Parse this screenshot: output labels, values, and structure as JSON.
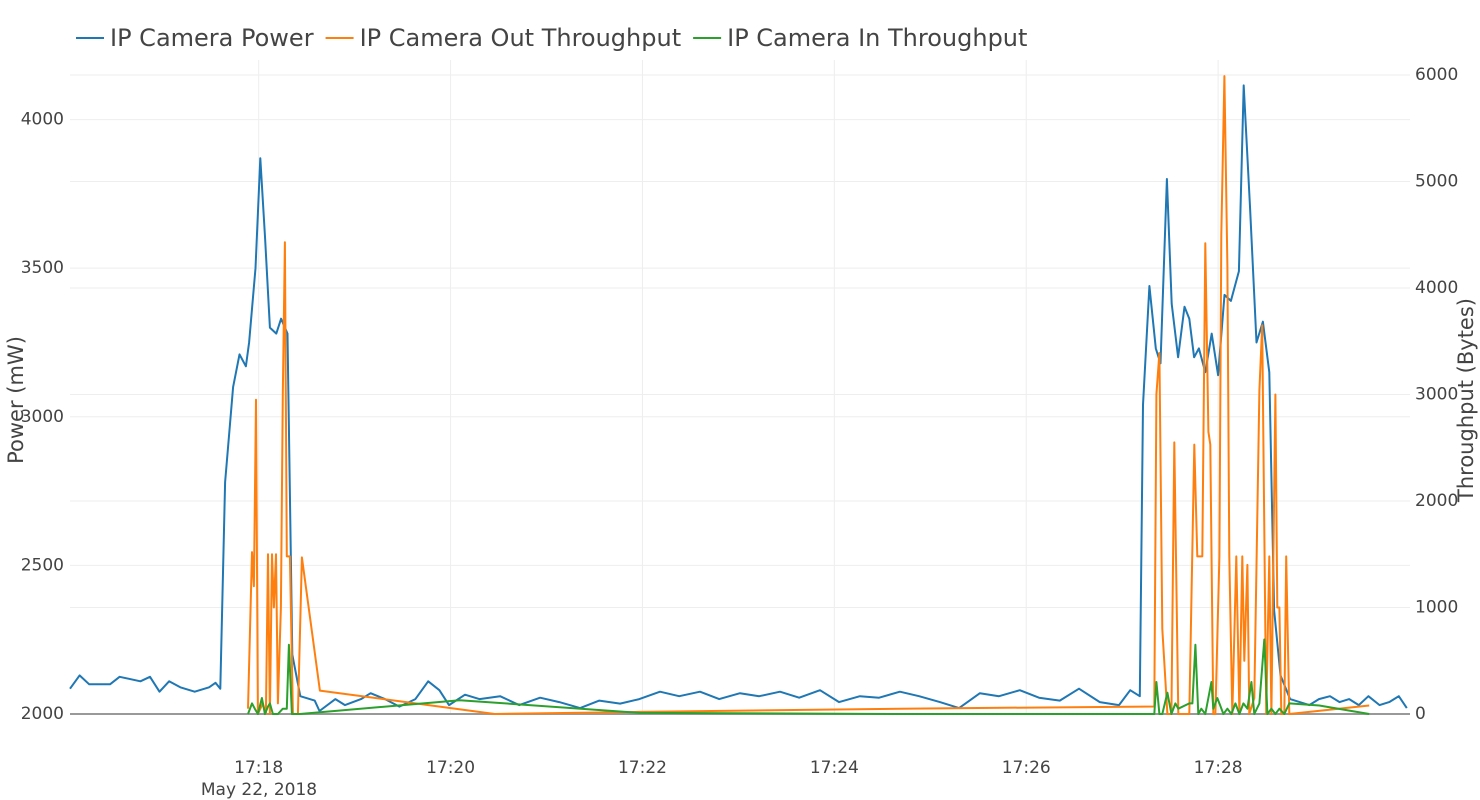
{
  "chart_data": {
    "type": "line",
    "x_date_label": "May 22, 2018",
    "ylabel": "Power (mW)",
    "y2label": "Throughput (Bytes)",
    "xlim": [
      "17:16:02",
      "17:30:00"
    ],
    "xticks": [
      {
        "value": "17:18:00",
        "label": "17:18"
      },
      {
        "value": "17:20:00",
        "label": "17:20"
      },
      {
        "value": "17:22:00",
        "label": "17:22"
      },
      {
        "value": "17:24:00",
        "label": "17:24"
      },
      {
        "value": "17:26:00",
        "label": "17:26"
      },
      {
        "value": "17:28:00",
        "label": "17:28"
      }
    ],
    "ylim": [
      2000,
      4150
    ],
    "yticks": [
      2000,
      2500,
      3000,
      3500,
      4000
    ],
    "y2lim": [
      0,
      6000
    ],
    "y2ticks": [
      0,
      1000,
      2000,
      3000,
      4000,
      5000,
      6000
    ],
    "grid": true,
    "legend": "top-left",
    "series": [
      {
        "name": "IP Camera Power",
        "color": "#1f77b4",
        "axis": "y",
        "x": [
          "17:16:02",
          "17:16:08",
          "17:16:14",
          "17:16:27",
          "17:16:33",
          "17:16:46",
          "17:16:52",
          "17:16:58",
          "17:17:04",
          "17:17:11",
          "17:17:20",
          "17:17:29",
          "17:17:33",
          "17:17:36",
          "17:17:39",
          "17:17:44",
          "17:17:48",
          "17:17:52",
          "17:17:54",
          "17:17:58",
          "17:18:01",
          "17:18:04",
          "17:18:07",
          "17:18:11",
          "17:18:14",
          "17:18:18",
          "17:18:21",
          "17:18:26",
          "17:18:35",
          "17:18:38",
          "17:18:48",
          "17:18:54",
          "17:19:04",
          "17:19:10",
          "17:19:19",
          "17:19:28",
          "17:19:38",
          "17:19:46",
          "17:19:53",
          "17:19:59",
          "17:20:09",
          "17:20:18",
          "17:20:31",
          "17:20:43",
          "17:20:56",
          "17:21:08",
          "17:21:21",
          "17:21:33",
          "17:21:46",
          "17:21:58",
          "17:22:11",
          "17:22:23",
          "17:22:36",
          "17:22:48",
          "17:23:01",
          "17:23:13",
          "17:23:26",
          "17:23:38",
          "17:23:51",
          "17:24:03",
          "17:24:16",
          "17:24:28",
          "17:24:41",
          "17:24:53",
          "17:25:06",
          "17:25:18",
          "17:25:31",
          "17:25:43",
          "17:25:56",
          "17:26:08",
          "17:26:21",
          "17:26:33",
          "17:26:46",
          "17:26:58",
          "17:27:05",
          "17:27:11",
          "17:27:13",
          "17:27:17",
          "17:27:21",
          "17:27:24",
          "17:27:28",
          "17:27:31",
          "17:27:35",
          "17:27:39",
          "17:27:42",
          "17:27:45",
          "17:27:48",
          "17:27:52",
          "17:27:56",
          "17:28:00",
          "17:28:04",
          "17:28:08",
          "17:28:13",
          "17:28:16",
          "17:28:20",
          "17:28:24",
          "17:28:28",
          "17:28:32",
          "17:28:35",
          "17:28:39",
          "17:28:45",
          "17:28:51",
          "17:28:57",
          "17:29:03",
          "17:29:10",
          "17:29:16",
          "17:29:22",
          "17:29:28",
          "17:29:34",
          "17:29:41",
          "17:29:47",
          "17:29:53",
          "17:29:58"
        ],
        "values": [
          2085,
          2130,
          2100,
          2100,
          2125,
          2110,
          2125,
          2075,
          2110,
          2090,
          2075,
          2090,
          2105,
          2085,
          2780,
          3100,
          3210,
          3170,
          3250,
          3500,
          3870,
          3600,
          3300,
          3280,
          3330,
          3280,
          2200,
          2060,
          2045,
          2010,
          2050,
          2030,
          2050,
          2070,
          2050,
          2025,
          2050,
          2110,
          2080,
          2030,
          2065,
          2050,
          2060,
          2030,
          2055,
          2040,
          2020,
          2045,
          2035,
          2050,
          2075,
          2060,
          2075,
          2050,
          2070,
          2060,
          2075,
          2055,
          2080,
          2040,
          2060,
          2055,
          2075,
          2060,
          2040,
          2020,
          2070,
          2060,
          2080,
          2055,
          2045,
          2085,
          2040,
          2030,
          2080,
          2060,
          3040,
          3440,
          3230,
          3180,
          3800,
          3380,
          3200,
          3370,
          3330,
          3200,
          3230,
          3150,
          3280,
          3140,
          3410,
          3390,
          3490,
          4115,
          3700,
          3250,
          3320,
          3150,
          2350,
          2130,
          2050,
          2040,
          2030,
          2050,
          2060,
          2040,
          2050,
          2030,
          2060,
          2030,
          2040,
          2060,
          2020
        ]
      },
      {
        "name": "IP Camera Out Throughput",
        "color": "#ff7f0e",
        "axis": "y2",
        "x": [
          "17:17:53.3",
          "17:17:55.8",
          "17:17:57",
          "17:17:58.3",
          "17:17:59.5",
          "17:18:02.6",
          "17:18:04.5",
          "17:18:05.8",
          "17:18:07",
          "17:18:08.3",
          "17:18:09.5",
          "17:18:10.8",
          "17:18:12",
          "17:18:13.9",
          "17:18:15.1",
          "17:18:16.4",
          "17:18:17.6",
          "17:18:19.5",
          "17:18:21.4",
          "17:18:24.5",
          "17:18:27",
          "17:18:38.3",
          "17:20:27.6",
          "17:21:58.3",
          "17:24:40.8",
          "17:27:20.1",
          "17:27:21.4",
          "17:27:23.3",
          "17:27:25.1",
          "17:27:28.3",
          "17:27:30.8",
          "17:27:32.6",
          "17:27:35.1",
          "17:27:42",
          "17:27:45.1",
          "17:27:47",
          "17:27:50.1",
          "17:27:52",
          "17:27:53.9",
          "17:27:55.1",
          "17:27:57",
          "17:27:58.3",
          "17:28:00.8",
          "17:28:02",
          "17:28:03.9",
          "17:28:05.8",
          "17:28:07",
          "17:28:08.9",
          "17:28:11.4",
          "17:28:13.3",
          "17:28:15.1",
          "17:28:16.4",
          "17:28:18.3",
          "17:28:19.5",
          "17:28:22.6",
          "17:28:25.8",
          "17:28:27.6",
          "17:28:30.1",
          "17:28:32",
          "17:28:33.3",
          "17:28:35.8",
          "17:28:37",
          "17:28:38.3",
          "17:28:39.5",
          "17:28:41.4",
          "17:28:42.6",
          "17:28:44.5",
          "17:29:34.5"
        ],
        "values": [
          50,
          1520,
          1200,
          2950,
          0,
          100,
          0,
          1500,
          0,
          1500,
          1000,
          1500,
          100,
          1000,
          3000,
          4430,
          1480,
          1480,
          0,
          0,
          1470,
          220,
          0,
          20,
          50,
          70,
          3000,
          3390,
          800,
          0,
          0,
          2550,
          0,
          0,
          2530,
          1480,
          1480,
          4420,
          2650,
          2530,
          0,
          0,
          1480,
          4500,
          5990,
          4200,
          1480,
          0,
          1480,
          0,
          1480,
          500,
          1400,
          0,
          150,
          3040,
          3650,
          0,
          1480,
          0,
          3000,
          1000,
          1000,
          0,
          0,
          1480,
          0,
          80
        ]
      },
      {
        "name": "IP Camera In Throughput",
        "color": "#2ca02c",
        "axis": "y2",
        "x": [
          "17:17:53.3",
          "17:17:55.8",
          "17:17:57.6",
          "17:17:59.5",
          "17:18:02",
          "17:18:03.9",
          "17:18:05.8",
          "17:18:07",
          "17:18:08.9",
          "17:18:12",
          "17:18:15.1",
          "17:18:17.6",
          "17:18:18.9",
          "17:18:20.8",
          "17:18:23.9",
          "17:18:25.8",
          "17:20:05.8",
          "17:21:58.3",
          "17:24:40.8",
          "17:27:20.1",
          "17:27:21.4",
          "17:27:23.3",
          "17:27:25.1",
          "17:27:28.3",
          "17:27:30.8",
          "17:27:33.3",
          "17:27:35.1",
          "17:27:42",
          "17:27:43.9",
          "17:27:45.8",
          "17:27:47.6",
          "17:27:49.5",
          "17:27:52",
          "17:27:55.8",
          "17:27:57",
          "17:27:59.5",
          "17:28:00.8",
          "17:28:03.3",
          "17:28:05.8",
          "17:28:08.3",
          "17:28:10.8",
          "17:28:13.3",
          "17:28:15.8",
          "17:28:18.3",
          "17:28:20.8",
          "17:28:22.6",
          "17:28:25.8",
          "17:28:28.9",
          "17:28:30.8",
          "17:28:33.3",
          "17:28:35.8",
          "17:28:38.3",
          "17:28:41.4",
          "17:28:44.5",
          "17:29:03.3",
          "17:29:34.5"
        ],
        "values": [
          0,
          100,
          50,
          0,
          150,
          0,
          70,
          100,
          0,
          0,
          50,
          50,
          650,
          0,
          0,
          0,
          130,
          10,
          0,
          0,
          300,
          0,
          0,
          200,
          0,
          100,
          50,
          100,
          100,
          650,
          0,
          50,
          0,
          300,
          50,
          150,
          100,
          0,
          50,
          0,
          100,
          0,
          100,
          50,
          300,
          0,
          100,
          700,
          0,
          50,
          0,
          50,
          0,
          100,
          80,
          0
        ]
      }
    ]
  }
}
